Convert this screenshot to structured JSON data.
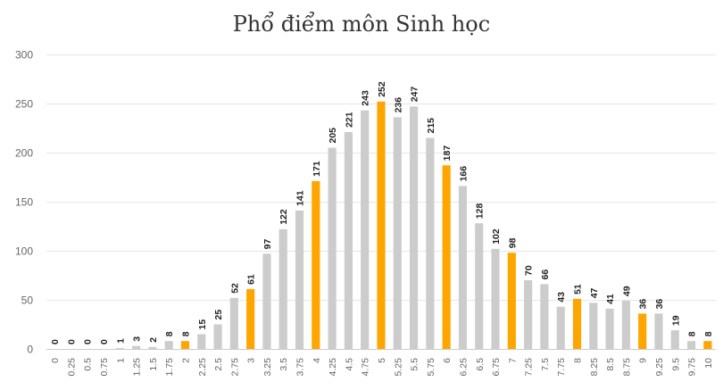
{
  "chart_data": {
    "type": "bar",
    "title": "Phổ điểm môn Sinh học",
    "xlabel": "",
    "ylabel": "",
    "ylim": [
      0,
      300
    ],
    "yticks": [
      0,
      50,
      100,
      150,
      200,
      250,
      300
    ],
    "grid": true,
    "legend": "none",
    "categories": [
      "0",
      "0.25",
      "0.5",
      "0.75",
      "1",
      "1.25",
      "1.5",
      "1.75",
      "2",
      "2.25",
      "2.5",
      "2.75",
      "3",
      "3.25",
      "3.5",
      "3.75",
      "4",
      "4.25",
      "4.5",
      "4.75",
      "5",
      "5.25",
      "5.5",
      "5.75",
      "6",
      "6.25",
      "6.5",
      "6.75",
      "7",
      "7.25",
      "7.5",
      "7.75",
      "8",
      "8.25",
      "8.5",
      "8.75",
      "9",
      "9.25",
      "9.5",
      "9.75",
      "10"
    ],
    "values": [
      0,
      0,
      0,
      0,
      1,
      3,
      2,
      8,
      8,
      15,
      25,
      52,
      61,
      97,
      122,
      141,
      171,
      205,
      221,
      243,
      252,
      236,
      247,
      215,
      187,
      166,
      128,
      102,
      98,
      70,
      66,
      43,
      51,
      47,
      41,
      49,
      36,
      36,
      19,
      8,
      8
    ],
    "highlight_categories": [
      "2",
      "3",
      "4",
      "5",
      "6",
      "7",
      "8",
      "9",
      "10"
    ],
    "colors": {
      "default": "#cccccc",
      "highlight": "#ffa500"
    }
  }
}
